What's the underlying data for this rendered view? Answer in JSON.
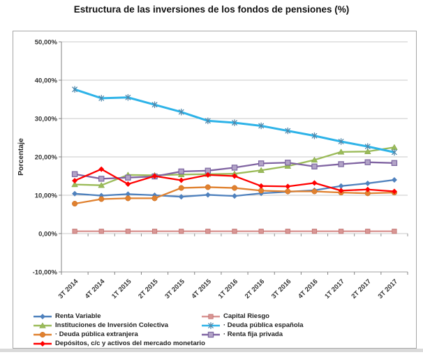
{
  "title": "Estructura de las inversiones de los fondos de pensiones (%)",
  "chart_data": {
    "type": "line",
    "title": "Estructura de las inversiones de los fondos de pensiones (%)",
    "xlabel": "",
    "ylabel": "Porcentaje",
    "ylim": [
      -10,
      50
    ],
    "ytick_step": 10,
    "ytick_labels": [
      "50,00%",
      "40,00%",
      "30,00%",
      "20,00%",
      "10,00%",
      "0,00%",
      "-10,00%"
    ],
    "grid": true,
    "legend_position": "bottom",
    "categories": [
      "3T 2014",
      "4T 2014",
      "1T 2015",
      "2T 2015",
      "3T 2015",
      "4T 2015",
      "1T 2016",
      "2T 2016",
      "3T 2016",
      "4T 2016",
      "1T 2017",
      "2T 2017",
      "3T 2017"
    ],
    "series": [
      {
        "id": "renta-variable",
        "name": "Renta Variable",
        "legend_label": "Renta Variable",
        "color": "#4F81BD",
        "marker": "diamond",
        "values": [
          10.4,
          9.9,
          10.3,
          10.0,
          9.6,
          10.1,
          9.8,
          10.5,
          10.9,
          11.3,
          12.4,
          13.1,
          14.0
        ]
      },
      {
        "id": "capital-riesgo",
        "name": "Capital Riesgo",
        "legend_label": "Capital Riesgo",
        "color": "#D99694",
        "marker": "square",
        "marker_stroke": "#C0706E",
        "values": [
          0.6,
          0.6,
          0.6,
          0.6,
          0.6,
          0.6,
          0.6,
          0.6,
          0.6,
          0.6,
          0.6,
          0.6,
          0.6
        ]
      },
      {
        "id": "instituciones-inversion-colectiva",
        "name": "Instituciones de Inversión Colectiva",
        "legend_label": "Instituciones de Inversión Colectiva",
        "color": "#9BBB59",
        "marker": "triangle",
        "marker_stroke": "#7DA245",
        "values": [
          12.8,
          12.6,
          15.3,
          15.2,
          15.4,
          15.5,
          15.6,
          16.5,
          17.6,
          19.2,
          21.3,
          21.4,
          22.5
        ]
      },
      {
        "id": "deuda-publica-espanola",
        "name": "Deuda pública española",
        "legend_label": "·  Deuda pública española",
        "color": "#2EB3E8",
        "marker": "star",
        "marker_stroke": "#4E87AB",
        "line_width": 3,
        "values": [
          37.6,
          35.3,
          35.5,
          33.6,
          31.7,
          29.4,
          28.9,
          28.1,
          26.8,
          25.5,
          24.0,
          22.7,
          21.2
        ]
      },
      {
        "id": "deuda-publica-extranjera",
        "name": "Deuda pública extranjera",
        "legend_label": "·  Deuda pública extranjera",
        "color": "#E0812F",
        "marker": "circle",
        "marker_stroke": "#C96A20",
        "values": [
          7.8,
          9.0,
          9.2,
          9.2,
          11.9,
          12.1,
          11.9,
          11.2,
          11.0,
          11.0,
          10.7,
          10.5,
          10.7
        ]
      },
      {
        "id": "renta-fija-privada",
        "name": "Renta fija privada",
        "legend_label": "·  Renta fija privada",
        "color": "#8064A2",
        "marker": "square-light",
        "marker_fill": "#B2A3C7",
        "marker_stroke": "#7C66A0",
        "values": [
          15.5,
          14.3,
          14.6,
          14.9,
          16.2,
          16.4,
          17.2,
          18.3,
          18.5,
          17.5,
          18.1,
          18.6,
          18.4
        ]
      },
      {
        "id": "depositos-mercado-monetario",
        "name": "Depósitos, c/c y activos del mercado monetario",
        "legend_label": "Depósitos, c/c y activos del mercado monetario",
        "color": "#FF0000",
        "marker": "diamond",
        "values": [
          13.8,
          16.8,
          12.9,
          15.0,
          13.9,
          15.3,
          15.0,
          12.4,
          12.3,
          13.2,
          11.2,
          11.5,
          11.0
        ]
      }
    ],
    "legend_columns": [
      [
        0,
        2,
        4,
        6
      ],
      [
        1,
        3,
        5
      ]
    ]
  }
}
